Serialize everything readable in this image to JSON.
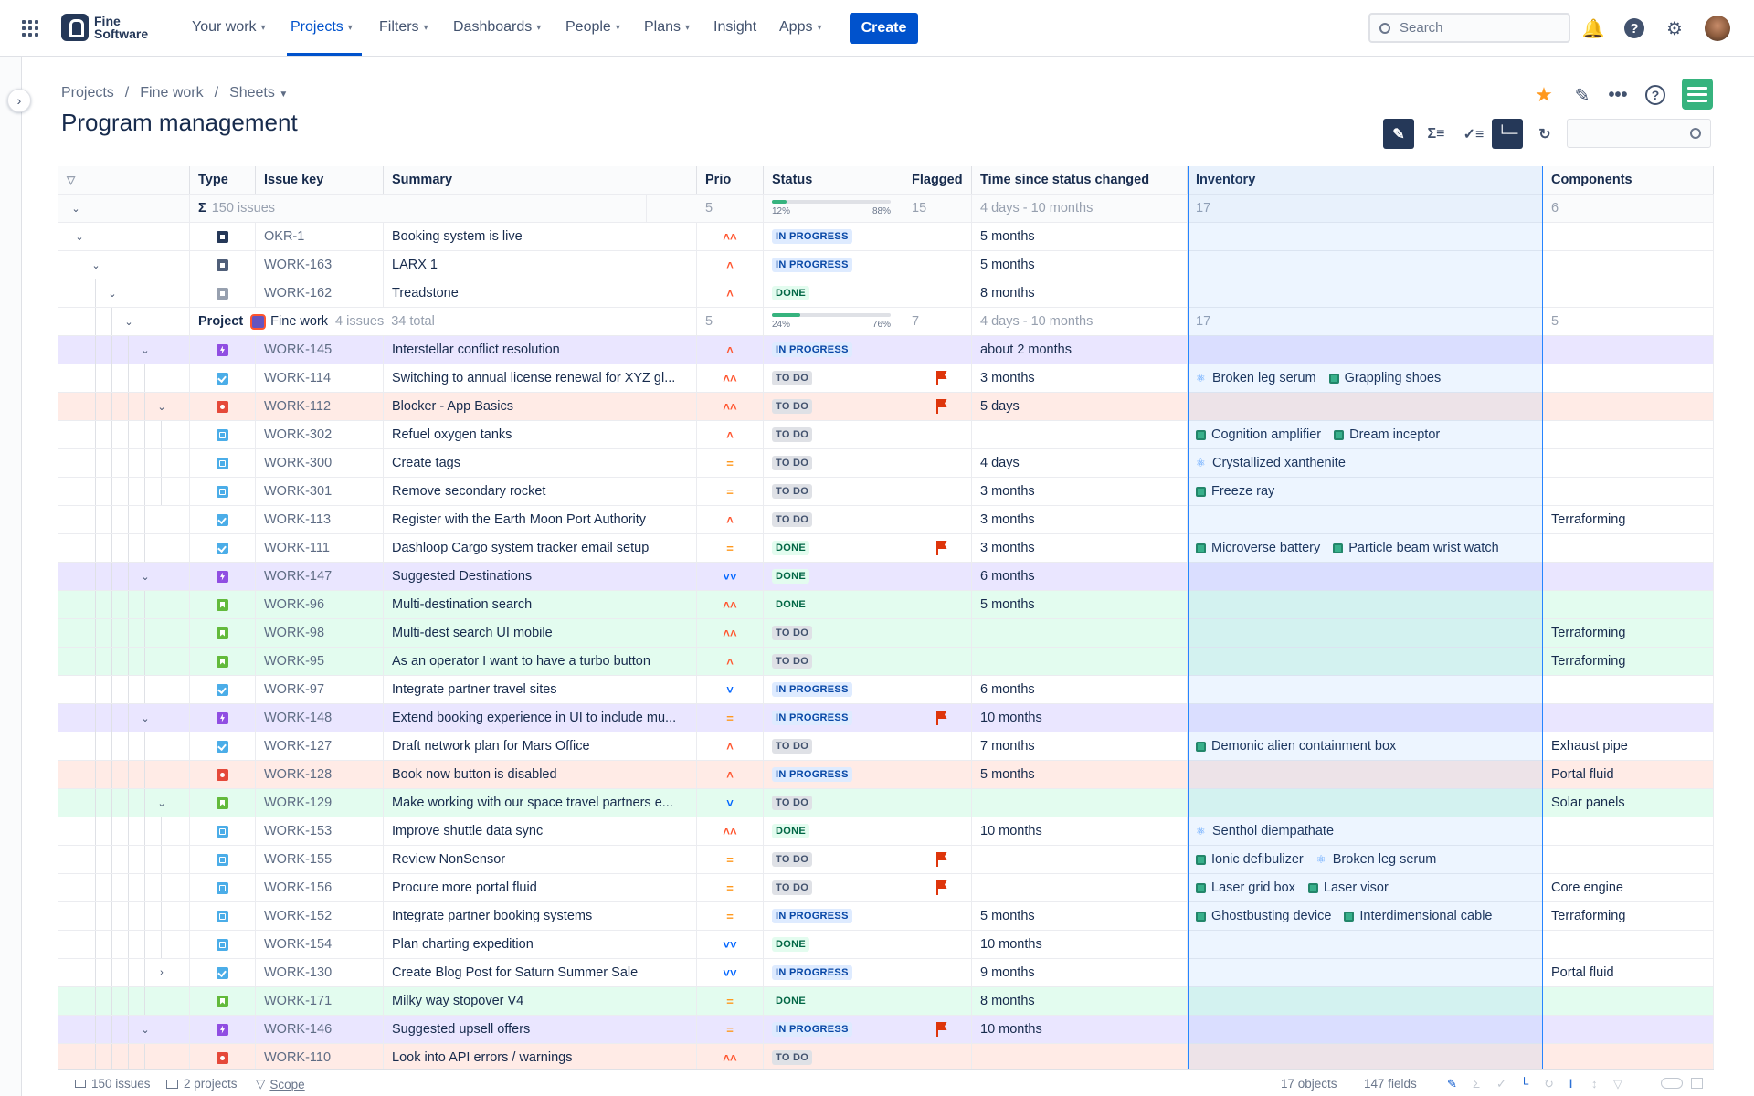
{
  "nav": {
    "logo_line1": "Fine",
    "logo_line2": "Software",
    "items": [
      {
        "label": "Your work",
        "dropdown": true
      },
      {
        "label": "Projects",
        "dropdown": true
      },
      {
        "label": "Filters",
        "dropdown": true
      },
      {
        "label": "Dashboards",
        "dropdown": true
      },
      {
        "label": "People",
        "dropdown": true
      },
      {
        "label": "Plans",
        "dropdown": true
      },
      {
        "label": "Insight",
        "dropdown": false
      },
      {
        "label": "Apps",
        "dropdown": true
      }
    ],
    "create_label": "Create",
    "search_placeholder": "Search"
  },
  "breadcrumb": [
    "Projects",
    "Fine work",
    "Sheets"
  ],
  "page_title": "Program management",
  "columns": [
    "Type",
    "Issue key",
    "Summary",
    "Prio",
    "Status",
    "Flagged",
    "Time since status changed",
    "Inventory",
    "Components"
  ],
  "summary_row": {
    "count": "150 issues",
    "prio": "5",
    "prog_left": "12%",
    "prog_right": "88%",
    "prog_fill": 0.12,
    "flagged": "15",
    "time": "4 days - 10 months",
    "inventory": "17",
    "components": "6"
  },
  "project_row": {
    "label": "Project",
    "name": "Fine work",
    "issues": "4 issues",
    "total": "34 total",
    "prio": "5",
    "prog_left": "24%",
    "prog_right": "76%",
    "prog_fill": 0.24,
    "flagged": "7",
    "time": "4 days - 10 months",
    "inventory": "17",
    "components": "5"
  },
  "rows": [
    {
      "level": 1,
      "caret": "down",
      "type": "obj",
      "key": "OKR-1",
      "summary": "Booking system is live",
      "prio": "highest",
      "status": "IN PROGRESS",
      "flag": false,
      "time": "5 months",
      "inventory": [],
      "component": "",
      "bg": ""
    },
    {
      "level": 2,
      "caret": "down",
      "type": "init",
      "key": "WORK-163",
      "summary": "LARX 1",
      "prio": "high",
      "status": "IN PROGRESS",
      "flag": false,
      "time": "5 months",
      "inventory": [],
      "component": "",
      "bg": ""
    },
    {
      "level": 3,
      "caret": "down",
      "type": "ms",
      "key": "WORK-162",
      "summary": "Treadstone",
      "prio": "high",
      "status": "DONE",
      "flag": false,
      "time": "8 months",
      "inventory": [],
      "component": "",
      "bg": ""
    },
    {
      "level": 5,
      "caret": "down",
      "type": "epic",
      "key": "WORK-145",
      "summary": "Interstellar conflict resolution",
      "prio": "high",
      "status": "IN PROGRESS",
      "flag": false,
      "time": "about 2 months",
      "inventory": [],
      "component": "",
      "bg": "#eae6ff"
    },
    {
      "level": 6,
      "caret": "",
      "type": "task",
      "key": "WORK-114",
      "summary": "Switching to annual license renewal for XYZ gl...",
      "prio": "highest",
      "status": "TO DO",
      "flag": true,
      "time": "3 months",
      "inventory": [
        {
          "n": "Broken leg serum",
          "i": "atom"
        },
        {
          "n": "Grappling shoes",
          "i": "gear"
        }
      ],
      "component": "",
      "bg": ""
    },
    {
      "level": 6,
      "caret": "down",
      "type": "bug",
      "key": "WORK-112",
      "summary": "Blocker - App Basics",
      "prio": "highest",
      "status": "TO DO",
      "flag": true,
      "time": "5 days",
      "inventory": [],
      "component": "",
      "bg": "#ffebe6"
    },
    {
      "level": 7,
      "caret": "",
      "type": "sub",
      "key": "WORK-302",
      "summary": "Refuel oxygen tanks",
      "prio": "high",
      "status": "TO DO",
      "flag": false,
      "time": "",
      "inventory": [
        {
          "n": "Cognition amplifier",
          "i": "gear"
        },
        {
          "n": "Dream inceptor",
          "i": "gear"
        }
      ],
      "component": "",
      "bg": ""
    },
    {
      "level": 7,
      "caret": "",
      "type": "sub",
      "key": "WORK-300",
      "summary": "Create tags",
      "prio": "medium",
      "status": "TO DO",
      "flag": false,
      "time": "4 days",
      "inventory": [
        {
          "n": "Crystallized xanthenite",
          "i": "atom"
        }
      ],
      "component": "",
      "bg": ""
    },
    {
      "level": 7,
      "caret": "",
      "type": "sub",
      "key": "WORK-301",
      "summary": "Remove secondary rocket",
      "prio": "medium",
      "status": "TO DO",
      "flag": false,
      "time": "3 months",
      "inventory": [
        {
          "n": "Freeze ray",
          "i": "gear"
        }
      ],
      "component": "",
      "bg": ""
    },
    {
      "level": 6,
      "caret": "",
      "type": "task",
      "key": "WORK-113",
      "summary": "Register with the Earth Moon Port Authority",
      "prio": "high",
      "status": "TO DO",
      "flag": false,
      "time": "3 months",
      "inventory": [],
      "component": "Terraforming",
      "bg": ""
    },
    {
      "level": 6,
      "caret": "",
      "type": "task",
      "key": "WORK-111",
      "summary": "Dashloop Cargo system tracker email setup",
      "prio": "medium",
      "status": "DONE",
      "flag": true,
      "time": "3 months",
      "inventory": [
        {
          "n": "Microverse battery",
          "i": "gear"
        },
        {
          "n": "Particle beam wrist watch",
          "i": "gear"
        }
      ],
      "component": "",
      "bg": ""
    },
    {
      "level": 5,
      "caret": "down",
      "type": "epic",
      "key": "WORK-147",
      "summary": "Suggested Destinations",
      "prio": "lowest",
      "status": "DONE",
      "flag": false,
      "time": "6 months",
      "inventory": [],
      "component": "",
      "bg": "#eae6ff"
    },
    {
      "level": 6,
      "caret": "",
      "type": "story",
      "key": "WORK-96",
      "summary": "Multi-destination search",
      "prio": "highest",
      "status": "DONE",
      "flag": false,
      "time": "5 months",
      "inventory": [],
      "component": "",
      "bg": "#e3fcef"
    },
    {
      "level": 6,
      "caret": "",
      "type": "story",
      "key": "WORK-98",
      "summary": "Multi-dest search UI mobile",
      "prio": "highest",
      "status": "TO DO",
      "flag": false,
      "time": "",
      "inventory": [],
      "component": "Terraforming",
      "bg": "#e3fcef"
    },
    {
      "level": 6,
      "caret": "",
      "type": "story",
      "key": "WORK-95",
      "summary": "As an operator I want to have a turbo button",
      "prio": "high",
      "status": "TO DO",
      "flag": false,
      "time": "",
      "inventory": [],
      "component": "Terraforming",
      "bg": "#e3fcef"
    },
    {
      "level": 6,
      "caret": "",
      "type": "task",
      "key": "WORK-97",
      "summary": "Integrate partner travel sites",
      "prio": "low",
      "status": "IN PROGRESS",
      "flag": false,
      "time": "6 months",
      "inventory": [],
      "component": "",
      "bg": ""
    },
    {
      "level": 5,
      "caret": "down",
      "type": "epic",
      "key": "WORK-148",
      "summary": "Extend booking experience in UI to include mu...",
      "prio": "medium",
      "status": "IN PROGRESS",
      "flag": true,
      "time": "10 months",
      "inventory": [],
      "component": "",
      "bg": "#eae6ff"
    },
    {
      "level": 6,
      "caret": "",
      "type": "task",
      "key": "WORK-127",
      "summary": "Draft network plan for Mars Office",
      "prio": "high",
      "status": "TO DO",
      "flag": false,
      "time": "7 months",
      "inventory": [
        {
          "n": "Demonic alien containment box",
          "i": "gear"
        }
      ],
      "component": "Exhaust pipe",
      "bg": ""
    },
    {
      "level": 6,
      "caret": "",
      "type": "bug",
      "key": "WORK-128",
      "summary": "Book now button is disabled",
      "prio": "high",
      "status": "IN PROGRESS",
      "flag": false,
      "time": "5 months",
      "inventory": [],
      "component": "Portal fluid",
      "bg": "#ffebe6"
    },
    {
      "level": 6,
      "caret": "down",
      "type": "story",
      "key": "WORK-129",
      "summary": "Make working with our space travel partners e...",
      "prio": "low",
      "status": "TO DO",
      "flag": false,
      "time": "",
      "inventory": [],
      "component": "Solar panels",
      "bg": "#e3fcef"
    },
    {
      "level": 7,
      "caret": "",
      "type": "sub",
      "key": "WORK-153",
      "summary": "Improve shuttle data sync",
      "prio": "highest",
      "status": "DONE",
      "flag": false,
      "time": "10 months",
      "inventory": [
        {
          "n": "Senthol diempathate",
          "i": "atom"
        }
      ],
      "component": "",
      "bg": ""
    },
    {
      "level": 7,
      "caret": "",
      "type": "sub",
      "key": "WORK-155",
      "summary": "Review NonSensor",
      "prio": "medium",
      "status": "TO DO",
      "flag": true,
      "time": "",
      "inventory": [
        {
          "n": "Ionic defibulizer",
          "i": "gear"
        },
        {
          "n": "Broken leg serum",
          "i": "atom"
        }
      ],
      "component": "",
      "bg": ""
    },
    {
      "level": 7,
      "caret": "",
      "type": "sub",
      "key": "WORK-156",
      "summary": "Procure more portal fluid",
      "prio": "medium",
      "status": "TO DO",
      "flag": true,
      "time": "",
      "inventory": [
        {
          "n": "Laser grid box",
          "i": "gear"
        },
        {
          "n": "Laser visor",
          "i": "gear"
        }
      ],
      "component": "Core engine",
      "bg": ""
    },
    {
      "level": 7,
      "caret": "",
      "type": "sub",
      "key": "WORK-152",
      "summary": "Integrate partner booking systems",
      "prio": "medium",
      "status": "IN PROGRESS",
      "flag": false,
      "time": "5 months",
      "inventory": [
        {
          "n": "Ghostbusting device",
          "i": "gear"
        },
        {
          "n": "Interdimensional cable",
          "i": "gear"
        }
      ],
      "component": "Terraforming",
      "bg": ""
    },
    {
      "level": 7,
      "caret": "",
      "type": "sub",
      "key": "WORK-154",
      "summary": "Plan charting expedition",
      "prio": "lowest",
      "status": "DONE",
      "flag": false,
      "time": "10 months",
      "inventory": [],
      "component": "",
      "bg": ""
    },
    {
      "level": 6,
      "caret": "right",
      "type": "task",
      "key": "WORK-130",
      "summary": "Create Blog Post for Saturn Summer Sale",
      "prio": "lowest",
      "status": "IN PROGRESS",
      "flag": false,
      "time": "9 months",
      "inventory": [],
      "component": "Portal fluid",
      "bg": ""
    },
    {
      "level": 6,
      "caret": "",
      "type": "story",
      "key": "WORK-171",
      "summary": "Milky way stopover V4",
      "prio": "medium",
      "status": "DONE",
      "flag": false,
      "time": "8 months",
      "inventory": [],
      "component": "",
      "bg": "#e3fcef"
    },
    {
      "level": 5,
      "caret": "down",
      "type": "epic",
      "key": "WORK-146",
      "summary": "Suggested upsell offers",
      "prio": "medium",
      "status": "IN PROGRESS",
      "flag": true,
      "time": "10 months",
      "inventory": [],
      "component": "",
      "bg": "#eae6ff"
    },
    {
      "level": 6,
      "caret": "",
      "type": "bug",
      "key": "WORK-110",
      "summary": "Look into API errors / warnings",
      "prio": "highest",
      "status": "TO DO",
      "flag": false,
      "time": "",
      "inventory": [],
      "component": "",
      "bg": "#ffebe6"
    }
  ],
  "footer": {
    "issues": "150 issues",
    "projects": "2 projects",
    "scope": "Scope",
    "objects": "17 objects",
    "fields": "147 fields"
  },
  "colors": {
    "accent": "#0052cc",
    "progress": "#36b37e",
    "selection": "#2684ff"
  }
}
